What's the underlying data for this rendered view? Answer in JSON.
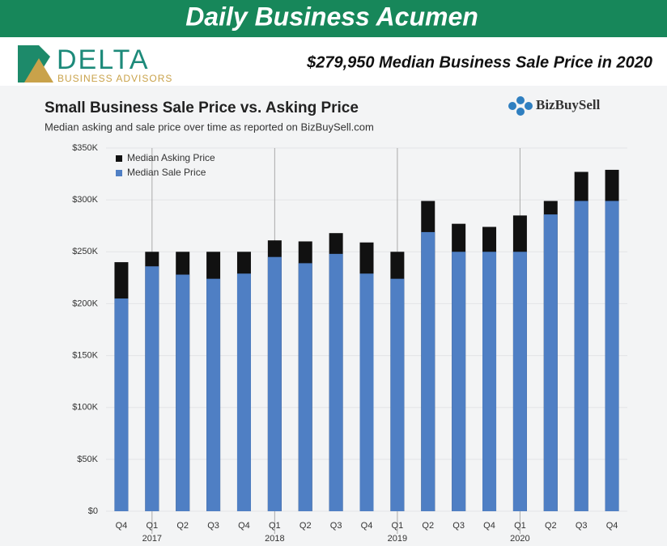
{
  "header": {
    "title": "Daily Business Acumen",
    "logo_name": "DELTA",
    "logo_tagline": "BUSINESS ADVISORS",
    "headline": "$279,950 Median Business Sale Price in 2020"
  },
  "source_logo": "BizBuySell",
  "chart_data": {
    "type": "bar",
    "title": "Small Business Sale Price vs. Asking Price",
    "subtitle": "Median asking and sale price over time as reported on BizBuySell.com",
    "categories": [
      "Q4",
      "Q1",
      "Q2",
      "Q3",
      "Q4",
      "Q1",
      "Q2",
      "Q3",
      "Q4",
      "Q1",
      "Q2",
      "Q3",
      "Q4",
      "Q1",
      "Q2",
      "Q3",
      "Q4"
    ],
    "years": [
      null,
      "2017",
      null,
      null,
      null,
      "2018",
      null,
      null,
      null,
      "2019",
      null,
      null,
      null,
      "2020",
      null,
      null,
      null
    ],
    "series": [
      {
        "name": "Median Asking Price",
        "color": "#111111",
        "values": [
          240000,
          250000,
          250000,
          250000,
          250000,
          261000,
          260000,
          268000,
          259000,
          250000,
          299000,
          277000,
          274000,
          285000,
          299000,
          327000,
          329000
        ]
      },
      {
        "name": "Median Sale Price",
        "color": "#4f7fc4",
        "values": [
          205000,
          236000,
          228000,
          224000,
          229000,
          245000,
          239000,
          248000,
          229000,
          224000,
          269000,
          250000,
          250000,
          250000,
          286000,
          299000,
          299000
        ]
      }
    ],
    "ylim": [
      0,
      350000
    ],
    "yticks": [
      {
        "value": 0,
        "label": "$0"
      },
      {
        "value": 50000,
        "label": "$50K"
      },
      {
        "value": 100000,
        "label": "$100K"
      },
      {
        "value": 150000,
        "label": "$150K"
      },
      {
        "value": 200000,
        "label": "$200K"
      },
      {
        "value": 250000,
        "label": "$250K"
      },
      {
        "value": 300000,
        "label": "$300K"
      },
      {
        "value": 350000,
        "label": "$350K"
      }
    ],
    "grid": true,
    "legend": "top-left"
  }
}
